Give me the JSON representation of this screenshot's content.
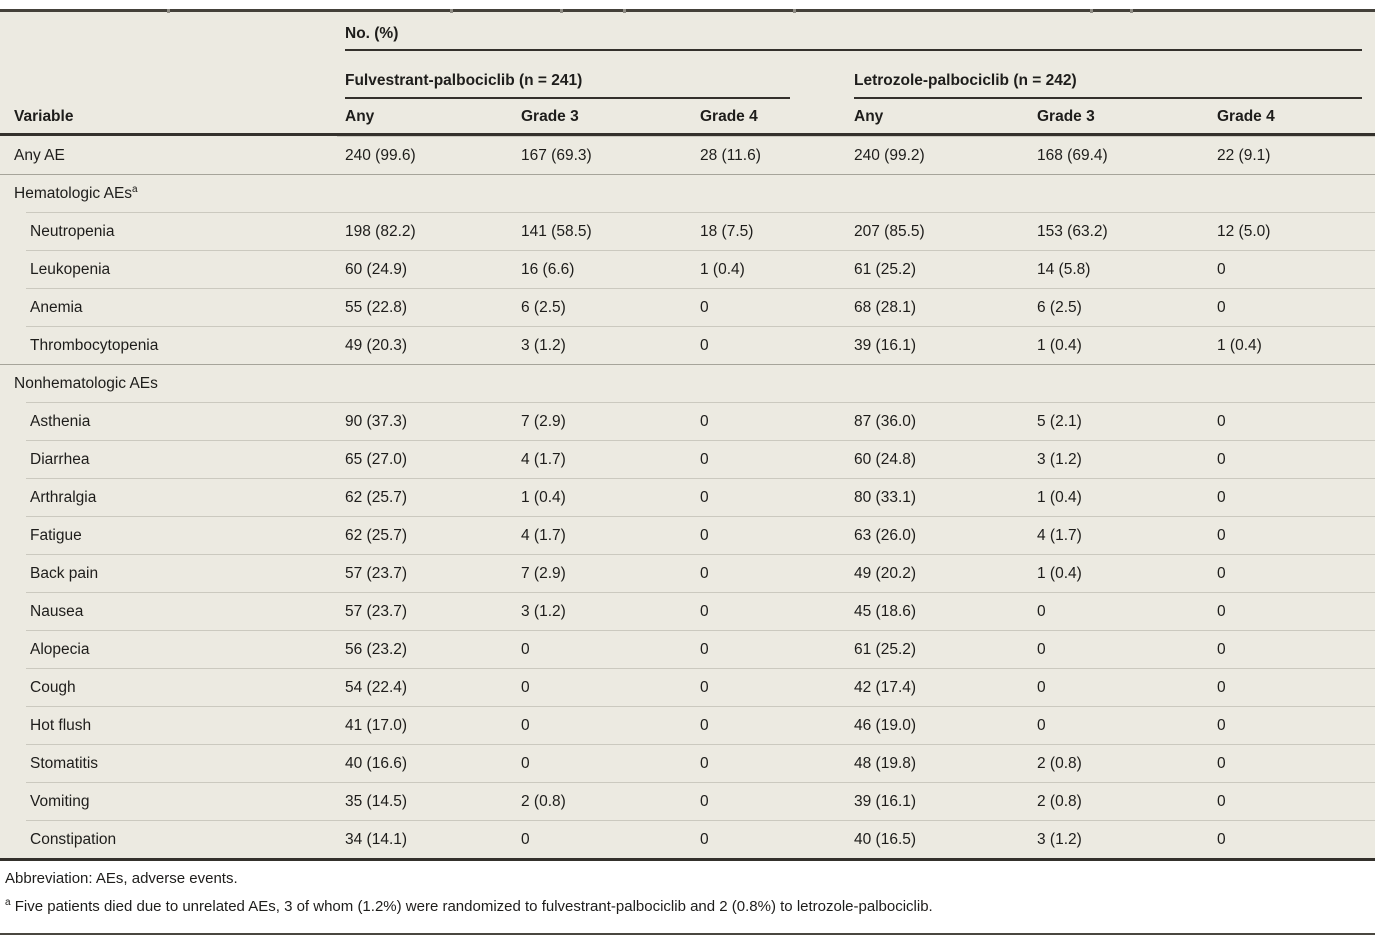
{
  "colors": {
    "table_background": "#ECEAE1",
    "dark_rule": "#34312C",
    "row_hairline": "#CBC9BF",
    "section_line": "#A6A49A",
    "text": "#1E1D1B"
  },
  "table": {
    "header": {
      "no_pct": "No. (%)",
      "variable": "Variable",
      "groups": [
        {
          "label": "Fulvestrant-palbociclib (n = 241)",
          "cols": [
            "Any",
            "Grade 3",
            "Grade 4"
          ]
        },
        {
          "label": "Letrozole-palbociclib (n = 242)",
          "cols": [
            "Any",
            "Grade 3",
            "Grade 4"
          ]
        }
      ]
    },
    "rows": [
      {
        "type": "data",
        "label": "Any AE",
        "indent": false,
        "values": [
          "240 (99.6)",
          "167 (69.3)",
          "28 (11.6)",
          "240 (99.2)",
          "168 (69.4)",
          "22 (9.1)"
        ]
      },
      {
        "type": "section",
        "label": "Hematologic AEs",
        "sup": "a"
      },
      {
        "type": "data",
        "label": "Neutropenia",
        "indent": true,
        "values": [
          "198 (82.2)",
          "141 (58.5)",
          "18 (7.5)",
          "207 (85.5)",
          "153 (63.2)",
          "12 (5.0)"
        ]
      },
      {
        "type": "data",
        "label": "Leukopenia",
        "indent": true,
        "values": [
          "60 (24.9)",
          "16 (6.6)",
          "1 (0.4)",
          "61 (25.2)",
          "14 (5.8)",
          "0"
        ]
      },
      {
        "type": "data",
        "label": "Anemia",
        "indent": true,
        "values": [
          "55 (22.8)",
          "6 (2.5)",
          "0",
          "68 (28.1)",
          "6 (2.5)",
          "0"
        ]
      },
      {
        "type": "data",
        "label": "Thrombocytopenia",
        "indent": true,
        "values": [
          "49 (20.3)",
          "3 (1.2)",
          "0",
          "39 (16.1)",
          "1 (0.4)",
          "1 (0.4)"
        ]
      },
      {
        "type": "section",
        "label": "Nonhematologic AEs",
        "sup": ""
      },
      {
        "type": "data",
        "label": "Asthenia",
        "indent": true,
        "values": [
          "90 (37.3)",
          "7 (2.9)",
          "0",
          "87 (36.0)",
          "5 (2.1)",
          "0"
        ]
      },
      {
        "type": "data",
        "label": "Diarrhea",
        "indent": true,
        "values": [
          "65 (27.0)",
          "4 (1.7)",
          "0",
          "60 (24.8)",
          "3 (1.2)",
          "0"
        ]
      },
      {
        "type": "data",
        "label": "Arthralgia",
        "indent": true,
        "values": [
          "62 (25.7)",
          "1 (0.4)",
          "0",
          "80 (33.1)",
          "1 (0.4)",
          "0"
        ]
      },
      {
        "type": "data",
        "label": "Fatigue",
        "indent": true,
        "values": [
          "62 (25.7)",
          "4 (1.7)",
          "0",
          "63 (26.0)",
          "4 (1.7)",
          "0"
        ]
      },
      {
        "type": "data",
        "label": "Back pain",
        "indent": true,
        "values": [
          "57 (23.7)",
          "7 (2.9)",
          "0",
          "49 (20.2)",
          "1 (0.4)",
          "0"
        ]
      },
      {
        "type": "data",
        "label": "Nausea",
        "indent": true,
        "values": [
          "57 (23.7)",
          "3 (1.2)",
          "0",
          "45 (18.6)",
          "0",
          "0"
        ]
      },
      {
        "type": "data",
        "label": "Alopecia",
        "indent": true,
        "values": [
          "56 (23.2)",
          "0",
          "0",
          "61 (25.2)",
          "0",
          "0"
        ]
      },
      {
        "type": "data",
        "label": "Cough",
        "indent": true,
        "values": [
          "54 (22.4)",
          "0",
          "0",
          "42 (17.4)",
          "0",
          "0"
        ]
      },
      {
        "type": "data",
        "label": "Hot flush",
        "indent": true,
        "values": [
          "41 (17.0)",
          "0",
          "0",
          "46 (19.0)",
          "0",
          "0"
        ]
      },
      {
        "type": "data",
        "label": "Stomatitis",
        "indent": true,
        "values": [
          "40 (16.6)",
          "0",
          "0",
          "48 (19.8)",
          "2 (0.8)",
          "0"
        ]
      },
      {
        "type": "data",
        "label": "Vomiting",
        "indent": true,
        "values": [
          "35 (14.5)",
          "2 (0.8)",
          "0",
          "39 (16.1)",
          "2 (0.8)",
          "0"
        ]
      },
      {
        "type": "data",
        "label": "Constipation",
        "indent": true,
        "values": [
          "34 (14.1)",
          "0",
          "0",
          "40 (16.5)",
          "3 (1.2)",
          "0"
        ]
      }
    ]
  },
  "footer": {
    "abbreviation": "Abbreviation: AEs, adverse events.",
    "footnote_marker": "a",
    "footnote": "Five patients died due to unrelated AEs, 3 of whom (1.2%) were randomized to fulvestrant-palbociclib and 2 (0.8%) to letrozole-palbociclib."
  }
}
